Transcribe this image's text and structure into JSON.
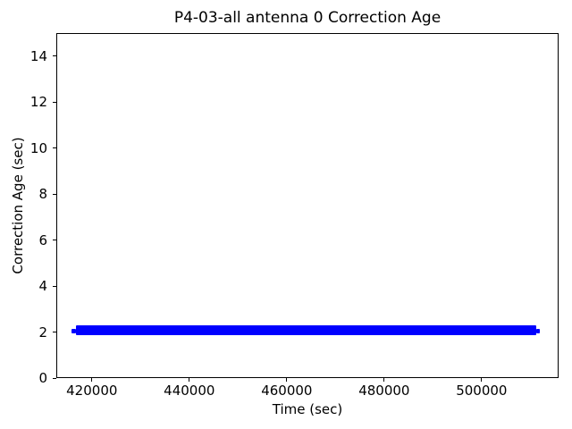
{
  "chart_data": {
    "type": "line",
    "title": "P4-03-all antenna 0 Correction Age",
    "xlabel": "Time (sec)",
    "ylabel": "Correction Age (sec)",
    "xlim": [
      412700,
      515800
    ],
    "ylim": [
      0,
      15
    ],
    "xticks": [
      420000,
      440000,
      460000,
      480000,
      500000
    ],
    "yticks": [
      0,
      2,
      4,
      6,
      8,
      10,
      12,
      14
    ],
    "grid": false,
    "legend_position": "none",
    "background_color": "#ffffff",
    "axis_color": "#000000",
    "text_color": "#000000",
    "series": [
      {
        "name": "antenna 0 correction age",
        "color": "#0000ff",
        "style": "dense band of samples forming a solid horizontal bar",
        "x_start": 415800,
        "x_end": 511900,
        "y_value": 2.0,
        "band_x": [
          416700,
          511200
        ],
        "band_y": [
          1.88,
          2.28
        ],
        "endcap_y": [
          1.95,
          2.12
        ]
      }
    ]
  }
}
